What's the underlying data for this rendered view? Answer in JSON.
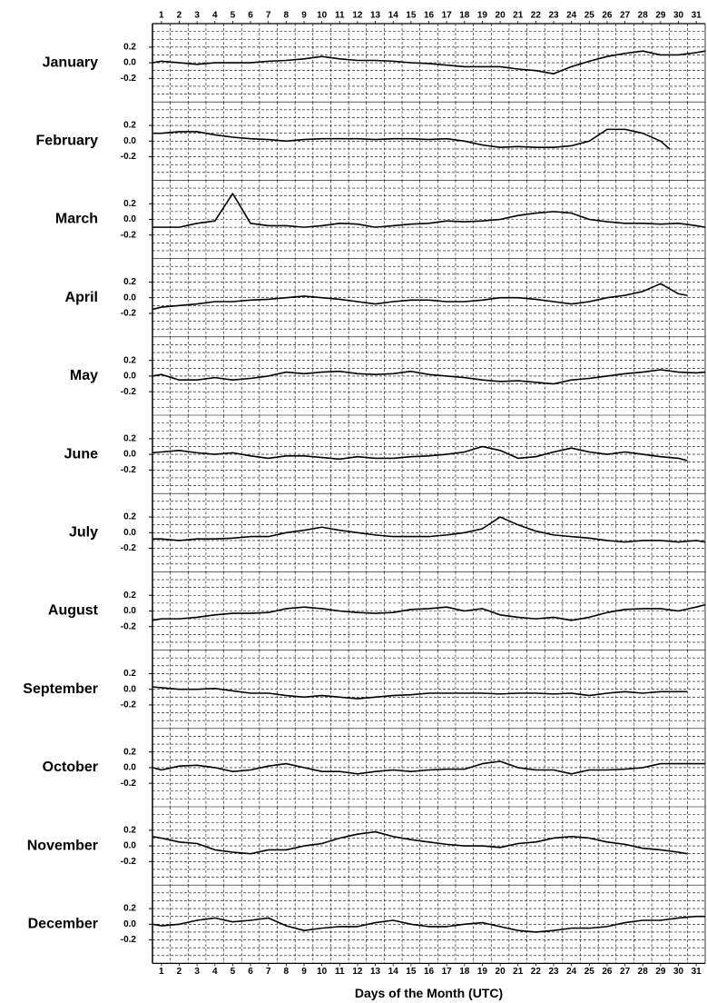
{
  "chart_data": [
    {
      "type": "line",
      "title": "January",
      "color": "#000000",
      "xlim": [
        0.5,
        31.5
      ],
      "ylim": [
        -0.5,
        0.5
      ],
      "yticks": [
        0.2,
        {
          "value": 0,
          "label": "0.0"
        },
        -0.2
      ],
      "xticks": [
        1,
        2,
        3,
        4,
        5,
        6,
        7,
        8,
        9,
        10,
        11,
        12,
        13,
        14,
        15,
        16,
        17,
        18,
        19,
        20,
        21,
        22,
        23,
        24,
        25,
        26,
        27,
        28,
        29,
        30,
        31
      ],
      "x": [
        0.5,
        1,
        2,
        3,
        4,
        5,
        6,
        7,
        8,
        9,
        10,
        11,
        12,
        13,
        14,
        15,
        16,
        17,
        18,
        19,
        20,
        21,
        22,
        23,
        24,
        25,
        26,
        27,
        28,
        29,
        30,
        31,
        31.5
      ],
      "values": [
        0,
        0.02,
        0,
        -0.02,
        0,
        0,
        0,
        0.02,
        0.03,
        0.05,
        0.08,
        0.05,
        0.03,
        0.03,
        0.02,
        0,
        -0.01,
        -0.03,
        -0.05,
        -0.05,
        -0.05,
        -0.08,
        -0.1,
        -0.14,
        -0.05,
        0.02,
        0.08,
        0.12,
        0.15,
        0.1,
        0.1,
        0.13,
        0.15
      ]
    },
    {
      "type": "line",
      "title": "February",
      "color": "#000000",
      "xlim": [
        0.5,
        31.5
      ],
      "ylim": [
        -0.5,
        0.5
      ],
      "yticks": [
        0.2,
        {
          "value": 0,
          "label": "0.0"
        },
        -0.2
      ],
      "x": [
        0.5,
        1,
        2,
        3,
        4,
        5,
        6,
        7,
        8,
        9,
        10,
        11,
        12,
        13,
        14,
        15,
        16,
        17,
        18,
        19,
        20,
        21,
        22,
        23,
        24,
        25,
        26,
        27,
        28,
        29,
        29.5
      ],
      "values": [
        0.1,
        0.1,
        0.12,
        0.12,
        0.08,
        0.05,
        0.03,
        0.02,
        0,
        0.02,
        0.03,
        0.03,
        0.03,
        0.02,
        0.03,
        0.03,
        0.02,
        0.03,
        0,
        -0.05,
        -0.08,
        -0.07,
        -0.08,
        -0.08,
        -0.06,
        0,
        0.15,
        0.15,
        0.1,
        0,
        -0.1
      ]
    },
    {
      "type": "line",
      "title": "March",
      "color": "#000000",
      "xlim": [
        0.5,
        31.5
      ],
      "ylim": [
        -0.5,
        0.5
      ],
      "yticks": [
        0.2,
        {
          "value": 0,
          "label": "0.0"
        },
        -0.2
      ],
      "x": [
        0.5,
        1,
        2,
        3,
        4,
        5,
        6,
        7,
        8,
        9,
        10,
        11,
        12,
        13,
        14,
        15,
        16,
        17,
        18,
        19,
        20,
        21,
        22,
        23,
        24,
        25,
        26,
        27,
        28,
        29,
        30,
        31,
        31.5
      ],
      "values": [
        -0.1,
        -0.1,
        -0.1,
        -0.05,
        -0.02,
        0.33,
        -0.05,
        -0.08,
        -0.08,
        -0.1,
        -0.08,
        -0.05,
        -0.06,
        -0.1,
        -0.08,
        -0.06,
        -0.05,
        -0.02,
        -0.03,
        -0.02,
        0,
        0.05,
        0.08,
        0.1,
        0.08,
        0,
        -0.03,
        -0.05,
        -0.05,
        -0.06,
        -0.05,
        -0.08,
        -0.1
      ]
    },
    {
      "type": "line",
      "title": "April",
      "color": "#000000",
      "xlim": [
        0.5,
        31.5
      ],
      "ylim": [
        -0.5,
        0.5
      ],
      "yticks": [
        0.2,
        {
          "value": 0,
          "label": "0.0"
        },
        -0.2
      ],
      "x": [
        0.5,
        1,
        2,
        3,
        4,
        5,
        6,
        7,
        8,
        9,
        10,
        11,
        12,
        13,
        14,
        15,
        16,
        17,
        18,
        19,
        20,
        21,
        22,
        23,
        24,
        25,
        26,
        27,
        28,
        29,
        30,
        30.5
      ],
      "values": [
        -0.15,
        -0.12,
        -0.1,
        -0.08,
        -0.05,
        -0.05,
        -0.03,
        -0.02,
        0,
        0.02,
        0,
        -0.02,
        -0.05,
        -0.08,
        -0.05,
        -0.03,
        -0.03,
        -0.05,
        -0.05,
        -0.03,
        0,
        0,
        -0.02,
        -0.05,
        -0.08,
        -0.05,
        0,
        0.03,
        0.08,
        0.18,
        0.05,
        0.03
      ]
    },
    {
      "type": "line",
      "title": "May",
      "color": "#000000",
      "xlim": [
        0.5,
        31.5
      ],
      "ylim": [
        -0.5,
        0.5
      ],
      "yticks": [
        0.2,
        {
          "value": 0,
          "label": "0.0"
        },
        -0.2
      ],
      "x": [
        0.5,
        1,
        2,
        3,
        4,
        5,
        6,
        7,
        8,
        9,
        10,
        11,
        12,
        13,
        14,
        15,
        16,
        17,
        18,
        19,
        20,
        21,
        22,
        23,
        24,
        25,
        26,
        27,
        28,
        29,
        30,
        31,
        31.5
      ],
      "values": [
        0,
        0.02,
        -0.05,
        -0.05,
        -0.02,
        -0.05,
        -0.03,
        0,
        0.05,
        0.03,
        0.05,
        0.06,
        0.03,
        0.02,
        0.03,
        0.06,
        0.02,
        0,
        -0.02,
        -0.05,
        -0.07,
        -0.06,
        -0.08,
        -0.1,
        -0.05,
        -0.03,
        0,
        0.03,
        0.05,
        0.08,
        0.05,
        0.04,
        0.05
      ]
    },
    {
      "type": "line",
      "title": "June",
      "color": "#000000",
      "xlim": [
        0.5,
        31.5
      ],
      "ylim": [
        -0.5,
        0.5
      ],
      "yticks": [
        0.2,
        {
          "value": 0,
          "label": "0.0"
        },
        -0.2
      ],
      "x": [
        0.5,
        1,
        2,
        3,
        4,
        5,
        6,
        7,
        8,
        9,
        10,
        11,
        12,
        13,
        14,
        15,
        16,
        17,
        18,
        19,
        20,
        21,
        22,
        23,
        24,
        25,
        26,
        27,
        28,
        29,
        30,
        30.5
      ],
      "values": [
        0.02,
        0.03,
        0.05,
        0.02,
        0,
        0.02,
        -0.02,
        -0.05,
        -0.02,
        -0.02,
        -0.04,
        -0.06,
        -0.03,
        -0.05,
        -0.05,
        -0.03,
        -0.02,
        0,
        0.03,
        0.1,
        0.05,
        -0.05,
        -0.03,
        0.03,
        0.08,
        0.03,
        0,
        0.03,
        0,
        -0.03,
        -0.05,
        -0.08
      ]
    },
    {
      "type": "line",
      "title": "July",
      "color": "#000000",
      "xlim": [
        0.5,
        31.5
      ],
      "ylim": [
        -0.5,
        0.5
      ],
      "yticks": [
        0.2,
        {
          "value": 0,
          "label": "0.0"
        },
        -0.2
      ],
      "x": [
        0.5,
        1,
        2,
        3,
        4,
        5,
        6,
        7,
        8,
        9,
        10,
        11,
        12,
        13,
        14,
        15,
        16,
        17,
        18,
        19,
        20,
        21,
        22,
        23,
        24,
        25,
        26,
        27,
        28,
        29,
        30,
        31,
        31.5
      ],
      "values": [
        -0.08,
        -0.08,
        -0.1,
        -0.08,
        -0.08,
        -0.07,
        -0.05,
        -0.05,
        0,
        0.03,
        0.07,
        0.03,
        0,
        -0.03,
        -0.05,
        -0.05,
        -0.05,
        -0.03,
        0,
        0.05,
        0.2,
        0.1,
        0.02,
        -0.03,
        -0.05,
        -0.07,
        -0.1,
        -0.12,
        -0.1,
        -0.1,
        -0.12,
        -0.1,
        -0.12
      ]
    },
    {
      "type": "line",
      "title": "August",
      "color": "#000000",
      "xlim": [
        0.5,
        31.5
      ],
      "ylim": [
        -0.5,
        0.5
      ],
      "yticks": [
        0.2,
        {
          "value": 0,
          "label": "0.0"
        },
        -0.2
      ],
      "x": [
        0.5,
        1,
        2,
        3,
        4,
        5,
        6,
        7,
        8,
        9,
        10,
        11,
        12,
        13,
        14,
        15,
        16,
        17,
        18,
        19,
        20,
        21,
        22,
        23,
        24,
        25,
        26,
        27,
        28,
        29,
        30,
        31,
        31.5
      ],
      "values": [
        -0.12,
        -0.1,
        -0.1,
        -0.08,
        -0.05,
        -0.03,
        -0.03,
        -0.02,
        0.03,
        0.05,
        0.03,
        0,
        -0.02,
        -0.03,
        -0.02,
        0.02,
        0.03,
        0.05,
        0,
        0.03,
        -0.05,
        -0.08,
        -0.1,
        -0.08,
        -0.12,
        -0.08,
        -0.02,
        0.02,
        0.03,
        0.03,
        0,
        0.05,
        0.08
      ]
    },
    {
      "type": "line",
      "title": "September",
      "color": "#000000",
      "xlim": [
        0.5,
        31.5
      ],
      "ylim": [
        -0.5,
        0.5
      ],
      "yticks": [
        0.2,
        {
          "value": 0,
          "label": "0.0"
        },
        -0.2
      ],
      "x": [
        0.5,
        1,
        2,
        3,
        4,
        5,
        6,
        7,
        8,
        9,
        10,
        11,
        12,
        13,
        14,
        15,
        16,
        17,
        18,
        19,
        20,
        21,
        22,
        23,
        24,
        25,
        26,
        27,
        28,
        29,
        30,
        30.5
      ],
      "values": [
        0.03,
        0.02,
        0,
        0,
        0.01,
        -0.02,
        -0.05,
        -0.05,
        -0.08,
        -0.1,
        -0.08,
        -0.1,
        -0.12,
        -0.1,
        -0.08,
        -0.07,
        -0.05,
        -0.05,
        -0.05,
        -0.05,
        -0.06,
        -0.05,
        -0.05,
        -0.06,
        -0.05,
        -0.08,
        -0.05,
        -0.03,
        -0.05,
        -0.03,
        -0.03,
        -0.03
      ]
    },
    {
      "type": "line",
      "title": "October",
      "color": "#000000",
      "xlim": [
        0.5,
        31.5
      ],
      "ylim": [
        -0.5,
        0.5
      ],
      "yticks": [
        0.2,
        {
          "value": 0,
          "label": "0.0"
        },
        -0.2
      ],
      "x": [
        0.5,
        1,
        2,
        3,
        4,
        5,
        6,
        7,
        8,
        9,
        10,
        11,
        12,
        13,
        14,
        15,
        16,
        17,
        18,
        19,
        20,
        21,
        22,
        23,
        24,
        25,
        26,
        27,
        28,
        29,
        30,
        31,
        31.5
      ],
      "values": [
        0,
        -0.03,
        0.02,
        0.03,
        0,
        -0.05,
        -0.03,
        0.02,
        0.05,
        0,
        -0.05,
        -0.05,
        -0.08,
        -0.05,
        -0.03,
        -0.05,
        -0.03,
        -0.02,
        -0.02,
        0.05,
        0.08,
        0,
        -0.03,
        -0.03,
        -0.08,
        -0.03,
        -0.03,
        -0.02,
        0,
        0.05,
        0.05,
        0.05,
        0.05
      ]
    },
    {
      "type": "line",
      "title": "November",
      "color": "#000000",
      "xlim": [
        0.5,
        31.5
      ],
      "ylim": [
        -0.5,
        0.5
      ],
      "yticks": [
        0.2,
        {
          "value": 0,
          "label": "0.0"
        },
        -0.2
      ],
      "x": [
        0.5,
        1,
        2,
        3,
        4,
        5,
        6,
        7,
        8,
        9,
        10,
        11,
        12,
        13,
        14,
        15,
        16,
        17,
        18,
        19,
        20,
        21,
        22,
        23,
        24,
        25,
        26,
        27,
        28,
        29,
        30,
        30.5
      ],
      "values": [
        0.12,
        0.1,
        0.05,
        0.03,
        -0.05,
        -0.08,
        -0.1,
        -0.05,
        -0.05,
        0,
        0.03,
        0.1,
        0.15,
        0.18,
        0.12,
        0.08,
        0.05,
        0.02,
        0,
        0,
        -0.02,
        0.03,
        0.05,
        0.1,
        0.12,
        0.1,
        0.05,
        0.02,
        -0.03,
        -0.05,
        -0.08,
        -0.1
      ]
    },
    {
      "type": "line",
      "title": "December",
      "color": "#000000",
      "xlim": [
        0.5,
        31.5
      ],
      "ylim": [
        -0.5,
        0.5
      ],
      "yticks": [
        0.2,
        {
          "value": 0,
          "label": "0.0"
        },
        -0.2
      ],
      "xticks": [
        1,
        2,
        3,
        4,
        5,
        6,
        7,
        8,
        9,
        10,
        11,
        12,
        13,
        14,
        15,
        16,
        17,
        18,
        19,
        20,
        21,
        22,
        23,
        24,
        25,
        26,
        27,
        28,
        29,
        30,
        31
      ],
      "xlabel": "Days of the Month (UTC)",
      "x": [
        0.5,
        1,
        2,
        3,
        4,
        5,
        6,
        7,
        8,
        9,
        10,
        11,
        12,
        13,
        14,
        15,
        16,
        17,
        18,
        19,
        20,
        21,
        22,
        23,
        24,
        25,
        26,
        27,
        28,
        29,
        30,
        31,
        31.5
      ],
      "values": [
        0,
        -0.02,
        0,
        0.05,
        0.08,
        0.03,
        0.05,
        0.08,
        -0.02,
        -0.08,
        -0.05,
        -0.03,
        -0.03,
        0.02,
        0.05,
        0,
        -0.03,
        -0.03,
        0,
        0.02,
        -0.03,
        -0.08,
        -0.1,
        -0.08,
        -0.05,
        -0.05,
        -0.03,
        0.02,
        0.05,
        0.05,
        0.08,
        0.1,
        0.1
      ]
    }
  ]
}
